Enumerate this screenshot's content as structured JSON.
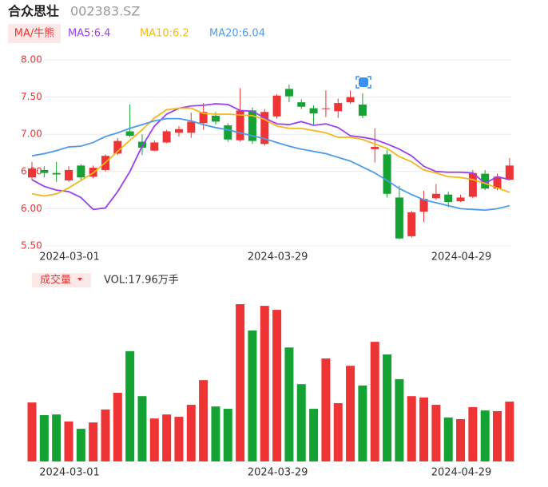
{
  "header": {
    "name": "合众思壮",
    "code": "002383.SZ"
  },
  "chart_data": [
    {
      "type": "candlestick",
      "button": "MA/牛熊",
      "categories": [
        null,
        null,
        null,
        "2024-03-01",
        null,
        null,
        null,
        null,
        null,
        null,
        null,
        null,
        null,
        null,
        null,
        null,
        null,
        null,
        null,
        null,
        "2024-03-29",
        null,
        null,
        null,
        null,
        null,
        null,
        null,
        null,
        null,
        null,
        null,
        null,
        null,
        null,
        "2024-04-29",
        null,
        null,
        null,
        null
      ],
      "open": [
        6.42,
        6.52,
        6.48,
        6.38,
        6.58,
        6.43,
        6.52,
        6.74,
        7.04,
        6.9,
        6.78,
        6.89,
        7.02,
        7.02,
        7.15,
        7.25,
        7.12,
        6.92,
        7.32,
        6.87,
        7.24,
        7.61,
        7.43,
        7.35,
        7.34,
        7.31,
        7.43,
        7.4,
        6.8,
        6.73,
        6.15,
        5.63,
        5.96,
        6.14,
        6.19,
        6.1,
        6.16,
        6.47,
        6.27,
        6.39
      ],
      "high": [
        6.63,
        6.57,
        6.63,
        6.57,
        6.6,
        6.58,
        6.73,
        6.95,
        7.4,
        7.0,
        6.92,
        7.06,
        7.11,
        7.29,
        7.42,
        7.3,
        7.15,
        7.62,
        7.36,
        7.34,
        7.54,
        7.67,
        7.47,
        7.39,
        7.59,
        7.48,
        7.59,
        7.55,
        7.08,
        6.79,
        6.31,
        5.97,
        6.24,
        6.33,
        6.23,
        6.19,
        6.52,
        6.52,
        6.47,
        6.68
      ],
      "low": [
        6.38,
        6.42,
        6.36,
        6.36,
        6.38,
        6.41,
        6.5,
        6.72,
        6.96,
        6.72,
        6.77,
        6.88,
        6.97,
        6.95,
        7.06,
        7.13,
        6.9,
        6.9,
        6.87,
        6.85,
        7.21,
        7.43,
        7.34,
        7.12,
        7.23,
        7.22,
        7.41,
        7.22,
        6.62,
        6.15,
        5.59,
        5.61,
        5.82,
        6.12,
        6.02,
        6.09,
        6.14,
        6.25,
        6.25,
        6.38
      ],
      "close": [
        6.54,
        6.48,
        6.46,
        6.52,
        6.42,
        6.55,
        6.71,
        6.91,
        6.98,
        6.82,
        6.89,
        7.04,
        7.07,
        7.17,
        7.3,
        7.17,
        6.93,
        7.32,
        6.91,
        7.3,
        7.52,
        7.51,
        7.37,
        7.28,
        7.35,
        7.42,
        7.5,
        7.25,
        6.83,
        6.2,
        5.6,
        5.95,
        6.13,
        6.2,
        6.09,
        6.15,
        6.48,
        6.27,
        6.43,
        6.58
      ],
      "up_color": "#ee3434",
      "down_color": "#14a332",
      "series": [
        {
          "name": "MA5:6.4",
          "color": "#9b3ff0",
          "values": [
            6.39,
            6.3,
            6.25,
            6.23,
            6.15,
            5.99,
            6.01,
            6.23,
            6.5,
            6.84,
            7.11,
            7.27,
            7.35,
            7.38,
            7.39,
            7.41,
            7.4,
            7.32,
            7.31,
            7.22,
            7.14,
            7.13,
            7.17,
            7.12,
            7.14,
            7.09,
            6.98,
            6.96,
            6.93,
            6.87,
            6.8,
            6.71,
            6.57,
            6.5,
            6.49,
            6.49,
            6.48,
            6.34,
            6.43,
            6.39
          ]
        },
        {
          "name": "MA10:6.2",
          "color": "#f3b81a",
          "values": [
            6.2,
            6.17,
            6.2,
            6.28,
            6.38,
            6.48,
            6.62,
            6.77,
            6.92,
            7.06,
            7.22,
            7.33,
            7.35,
            7.35,
            7.28,
            7.27,
            7.27,
            7.26,
            7.25,
            7.2,
            7.11,
            7.08,
            7.08,
            7.05,
            7.02,
            6.96,
            6.96,
            6.93,
            6.87,
            6.81,
            6.7,
            6.63,
            6.52,
            6.48,
            6.43,
            6.42,
            6.39,
            6.34,
            6.28,
            6.22
          ]
        },
        {
          "name": "MA20:6.04",
          "color": "#4d9bea",
          "values": [
            6.71,
            6.74,
            6.78,
            6.83,
            6.84,
            6.89,
            6.97,
            7.02,
            7.08,
            7.13,
            7.18,
            7.21,
            7.21,
            7.18,
            7.13,
            7.09,
            7.06,
            7.02,
            6.98,
            6.94,
            6.89,
            6.84,
            6.8,
            6.77,
            6.74,
            6.69,
            6.64,
            6.56,
            6.48,
            6.38,
            6.27,
            6.19,
            6.12,
            6.08,
            6.04,
            6.0,
            5.99,
            5.98,
            6.0,
            6.04
          ]
        }
      ],
      "ylim": [
        5.5,
        8.0
      ],
      "yticks": [
        {
          "value": 5.5,
          "label": "5.50"
        },
        {
          "value": 6.0,
          "label": "6.00"
        },
        {
          "value": 6.5,
          "label": "6.50"
        },
        {
          "value": 7.0,
          "label": "7.00"
        },
        {
          "value": 7.5,
          "label": "7.50"
        },
        {
          "value": 8.0,
          "label": "8.00"
        }
      ],
      "grid": true
    },
    {
      "type": "bar",
      "button": "成交量",
      "legend": "VOL:17.96万手",
      "categories": [
        null,
        null,
        null,
        "2024-03-01",
        null,
        null,
        null,
        null,
        null,
        null,
        null,
        null,
        null,
        null,
        null,
        null,
        null,
        null,
        null,
        null,
        "2024-03-29",
        null,
        null,
        null,
        null,
        null,
        null,
        null,
        null,
        null,
        null,
        null,
        null,
        null,
        null,
        "2024-04-29",
        null,
        null,
        null,
        null
      ],
      "values": [
        17.7,
        13.9,
        14.1,
        12.0,
        9.8,
        11.7,
        15.6,
        20.6,
        33.1,
        19.6,
        12.9,
        14.1,
        13.4,
        17.0,
        24.4,
        16.5,
        15.8,
        47.2,
        39.3,
        46.7,
        45.5,
        34.2,
        23.2,
        15.8,
        30.9,
        17.5,
        28.7,
        22.8,
        35.9,
        32.1,
        24.7,
        19.6,
        19.2,
        17.0,
        13.2,
        12.7,
        16.3,
        15.3,
        15.1,
        17.96
      ]
    }
  ]
}
